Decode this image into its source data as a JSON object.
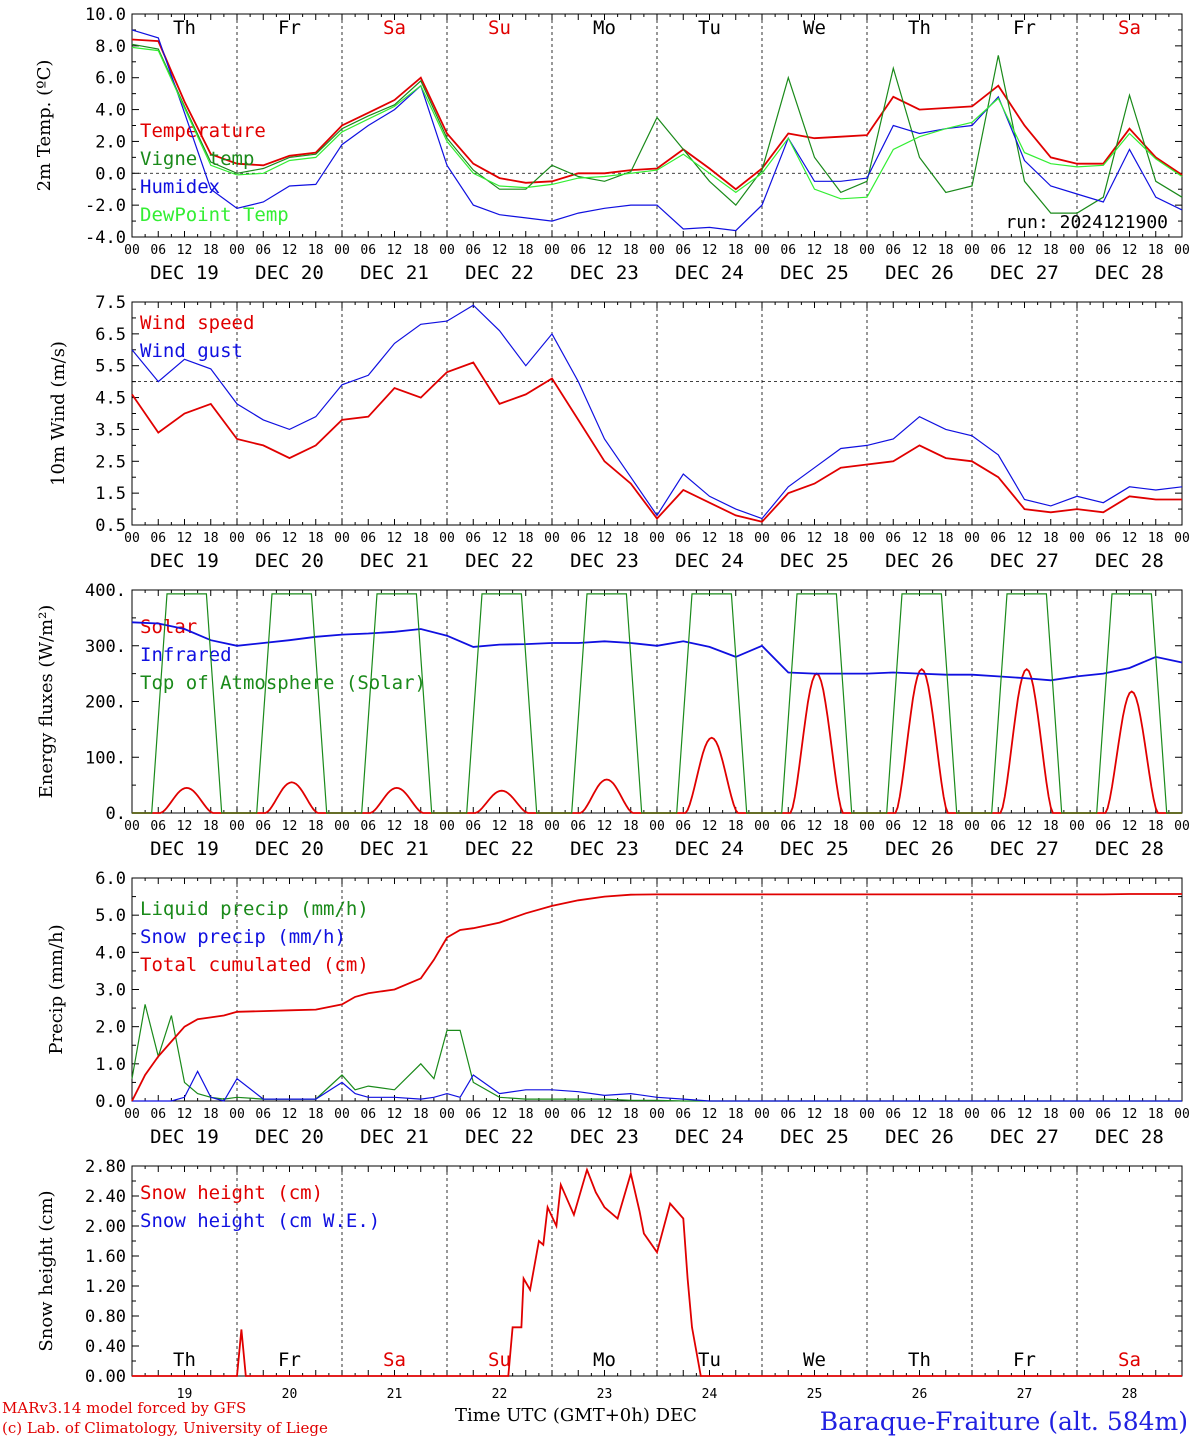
{
  "footer": {
    "credit1": "MARv3.14 model forced by GFS",
    "credit2": "(c) Lab. of Climatology, University of Liege",
    "time_axis": "Time UTC (GMT+0h) DEC",
    "location": "Baraque-Fraiture (alt. 584m)"
  },
  "run_label": "run: 2024121900",
  "colors": {
    "red": "#e00000",
    "green": "#1a8a1a",
    "blue": "#1010e0",
    "lightgreen": "#33ee33"
  },
  "days": [
    "Th",
    "Fr",
    "Sa",
    "Su",
    "Mo",
    "Tu",
    "We",
    "Th",
    "Fr",
    "Sa"
  ],
  "weekend": [
    false,
    false,
    true,
    true,
    false,
    false,
    false,
    false,
    false,
    true
  ],
  "dates": [
    "DEC 19",
    "DEC 20",
    "DEC 21",
    "DEC 22",
    "DEC 23",
    "DEC 24",
    "DEC 25",
    "DEC 26",
    "DEC 27",
    "DEC 28"
  ],
  "day_numbers": [
    "19",
    "20",
    "21",
    "22",
    "23",
    "24",
    "25",
    "26",
    "27",
    "28"
  ],
  "hour_ticks": [
    "00",
    "06",
    "12",
    "18"
  ],
  "chart_data": [
    {
      "type": "line",
      "ylabel": "2m Temp. (ºC)",
      "ylim": [
        -4,
        10
      ],
      "yticks": [
        "10.0",
        "8.0",
        "6.0",
        "4.0",
        "2.0",
        "0.0",
        "-2.0",
        "-4.0"
      ],
      "ytickvals": [
        10,
        8,
        6,
        4,
        2,
        0,
        -2,
        -4
      ],
      "refline": 0,
      "x_hours": [
        0,
        6,
        12,
        18,
        24,
        30,
        36,
        42,
        48,
        54,
        60,
        66,
        72,
        78,
        84,
        90,
        96,
        102,
        108,
        114,
        120,
        126,
        132,
        138,
        144,
        150,
        156,
        162,
        168,
        174,
        180,
        186,
        192,
        198,
        204,
        210,
        216,
        222,
        228,
        234,
        240
      ],
      "series": [
        {
          "name": "Temperature",
          "color": "red",
          "values": [
            8.4,
            8.3,
            4.5,
            1.2,
            0.6,
            0.5,
            1.1,
            1.3,
            3.0,
            3.8,
            4.6,
            6.0,
            2.5,
            0.6,
            -0.3,
            -0.6,
            -0.5,
            0.0,
            0.0,
            0.2,
            0.3,
            1.5,
            0.3,
            -1.0,
            0.3,
            2.5,
            2.2,
            2.3,
            2.4,
            4.8,
            4.0,
            4.1,
            4.2,
            5.5,
            3.0,
            1.0,
            0.6,
            0.6,
            2.8,
            1.0,
            -0.1
          ]
        },
        {
          "name": "Vigne temp",
          "color": "green",
          "values": [
            8.1,
            7.8,
            4.2,
            0.7,
            0.0,
            0.3,
            1.0,
            1.2,
            2.8,
            3.6,
            4.3,
            5.8,
            2.2,
            0.2,
            -1.0,
            -1.0,
            0.5,
            -0.2,
            -0.5,
            0.1,
            3.5,
            1.5,
            -0.5,
            -2.0,
            0.2,
            6.0,
            1.0,
            -1.2,
            -0.5,
            6.6,
            1.0,
            -1.2,
            -0.8,
            7.4,
            -0.5,
            -2.5,
            -2.5,
            -1.5,
            4.9,
            -0.5,
            -1.5
          ]
        },
        {
          "name": "Humidex",
          "color": "blue",
          "values": [
            9.0,
            8.5,
            3.8,
            -1.0,
            -2.2,
            -1.8,
            -0.8,
            -0.7,
            1.8,
            3.0,
            4.0,
            5.5,
            0.5,
            -2.0,
            -2.6,
            -2.8,
            -3.0,
            -2.5,
            -2.2,
            -2.0,
            -2.0,
            -3.5,
            -3.4,
            -3.6,
            -2.0,
            2.2,
            -0.5,
            -0.5,
            -0.3,
            3.0,
            2.5,
            2.8,
            3.0,
            4.8,
            0.8,
            -0.8,
            -1.3,
            -1.8,
            1.5,
            -1.5,
            -2.3
          ]
        },
        {
          "name": "DewPoint Temp",
          "color": "lightgreen",
          "values": [
            7.9,
            7.7,
            4.1,
            0.5,
            -0.1,
            0.0,
            0.8,
            1.0,
            2.6,
            3.4,
            4.2,
            5.5,
            2.0,
            0.0,
            -0.8,
            -0.9,
            -0.7,
            -0.3,
            -0.2,
            0.0,
            0.2,
            1.2,
            0.0,
            -1.2,
            0.0,
            2.2,
            -1.0,
            -1.6,
            -1.5,
            1.5,
            2.3,
            2.8,
            3.2,
            4.7,
            1.3,
            0.6,
            0.4,
            0.5,
            2.5,
            0.9,
            -0.2
          ]
        }
      ]
    },
    {
      "type": "line",
      "ylabel": "10m Wind (m/s)",
      "ylim": [
        0.5,
        7.5
      ],
      "yticks": [
        "7.5",
        "6.5",
        "5.5",
        "4.5",
        "3.5",
        "2.5",
        "1.5",
        "0.5"
      ],
      "ytickvals": [
        7.5,
        6.5,
        5.5,
        4.5,
        3.5,
        2.5,
        1.5,
        0.5
      ],
      "refline": 5.0,
      "x_hours": [
        0,
        6,
        12,
        18,
        24,
        30,
        36,
        42,
        48,
        54,
        60,
        66,
        72,
        78,
        84,
        90,
        96,
        102,
        108,
        114,
        120,
        126,
        132,
        138,
        144,
        150,
        156,
        162,
        168,
        174,
        180,
        186,
        192,
        198,
        204,
        210,
        216,
        222,
        228,
        234,
        240
      ],
      "series": [
        {
          "name": "Wind speed",
          "color": "red",
          "values": [
            4.6,
            3.4,
            4.0,
            4.3,
            3.2,
            3.0,
            2.6,
            3.0,
            3.8,
            3.9,
            4.8,
            4.5,
            5.3,
            5.6,
            4.3,
            4.6,
            5.1,
            3.8,
            2.5,
            1.8,
            0.7,
            1.6,
            1.2,
            0.8,
            0.6,
            1.5,
            1.8,
            2.3,
            2.4,
            2.5,
            3.0,
            2.6,
            2.5,
            2.0,
            1.0,
            0.9,
            1.0,
            0.9,
            1.4,
            1.3,
            1.3
          ]
        },
        {
          "name": "Wind gust",
          "color": "blue",
          "values": [
            6.0,
            5.0,
            5.7,
            5.4,
            4.3,
            3.8,
            3.5,
            3.9,
            4.9,
            5.2,
            6.2,
            6.8,
            6.9,
            7.4,
            6.6,
            5.5,
            6.5,
            5.0,
            3.2,
            2.0,
            0.8,
            2.1,
            1.4,
            1.0,
            0.7,
            1.7,
            2.3,
            2.9,
            3.0,
            3.2,
            3.9,
            3.5,
            3.3,
            2.7,
            1.3,
            1.1,
            1.4,
            1.2,
            1.7,
            1.6,
            1.7
          ]
        }
      ]
    },
    {
      "type": "line",
      "ylabel": "Energy fluxes (W/m²)",
      "ylim": [
        0,
        400
      ],
      "yticks": [
        "400.",
        "300.",
        "200.",
        "100.",
        "0."
      ],
      "ytickvals": [
        400,
        300,
        200,
        100,
        0
      ],
      "series": [
        {
          "name": "Solar",
          "color": "red",
          "peaks": [
            45,
            55,
            45,
            40,
            60,
            135,
            250,
            258,
            258,
            218
          ]
        },
        {
          "name": "Infrared",
          "color": "blue",
          "x_hours": [
            0,
            6,
            12,
            18,
            24,
            30,
            36,
            42,
            48,
            54,
            60,
            66,
            72,
            78,
            84,
            90,
            96,
            102,
            108,
            114,
            120,
            126,
            132,
            138,
            144,
            150,
            156,
            162,
            168,
            174,
            180,
            186,
            192,
            198,
            204,
            210,
            216,
            222,
            228,
            234,
            240
          ],
          "values": [
            342,
            340,
            330,
            310,
            300,
            305,
            310,
            316,
            320,
            322,
            325,
            330,
            318,
            298,
            302,
            303,
            305,
            305,
            308,
            305,
            300,
            308,
            298,
            280,
            300,
            252,
            250,
            250,
            250,
            252,
            250,
            248,
            248,
            245,
            242,
            238,
            245,
            250,
            260,
            280,
            270
          ]
        },
        {
          "name": "Top of Atmosphere (Solar)",
          "color": "green",
          "peak": 393
        }
      ]
    },
    {
      "type": "line",
      "ylabel": "Precip (mm/h)",
      "ylim": [
        0,
        6
      ],
      "yticks": [
        "6.0",
        "5.0",
        "4.0",
        "3.0",
        "2.0",
        "1.0",
        "0.0"
      ],
      "ytickvals": [
        6,
        5,
        4,
        3,
        2,
        1,
        0
      ],
      "x_hours": [
        0,
        3,
        6,
        9,
        12,
        15,
        18,
        21,
        24,
        30,
        36,
        42,
        48,
        51,
        54,
        60,
        66,
        69,
        72,
        75,
        78,
        84,
        90,
        96,
        102,
        108,
        114,
        120,
        126,
        132,
        138,
        144,
        150,
        156,
        162,
        168,
        174,
        180,
        186,
        192,
        198,
        204,
        210,
        216,
        222,
        228,
        234,
        240
      ],
      "series": [
        {
          "name": "Liquid precip (mm/h)",
          "color": "green",
          "values": [
            0.6,
            2.6,
            1.2,
            2.3,
            0.5,
            0.2,
            0.1,
            0.05,
            0.1,
            0.05,
            0.05,
            0.05,
            0.7,
            0.3,
            0.4,
            0.3,
            1.0,
            0.6,
            1.9,
            1.9,
            0.5,
            0.1,
            0.05,
            0.05,
            0.05,
            0.05,
            0.02,
            0.02,
            0,
            0,
            0,
            0,
            0,
            0,
            0,
            0,
            0,
            0,
            0,
            0,
            0,
            0,
            0,
            0,
            0,
            0,
            0,
            0
          ]
        },
        {
          "name": "Snow precip (mm/h)",
          "color": "blue",
          "values": [
            0,
            0,
            0,
            0,
            0.1,
            0.8,
            0.1,
            0,
            0.6,
            0.05,
            0.05,
            0.05,
            0.5,
            0.2,
            0.1,
            0.1,
            0.05,
            0.1,
            0.2,
            0.1,
            0.7,
            0.2,
            0.3,
            0.3,
            0.25,
            0.15,
            0.2,
            0.1,
            0.05,
            0,
            0,
            0,
            0,
            0,
            0,
            0,
            0,
            0,
            0,
            0,
            0,
            0,
            0,
            0,
            0,
            0,
            0,
            0
          ]
        },
        {
          "name": "Total cumulated (cm)",
          "color": "red",
          "values": [
            0,
            0.7,
            1.2,
            1.6,
            2.0,
            2.2,
            2.25,
            2.3,
            2.4,
            2.42,
            2.44,
            2.46,
            2.6,
            2.8,
            2.9,
            3.0,
            3.3,
            3.8,
            4.4,
            4.6,
            4.65,
            4.8,
            5.05,
            5.25,
            5.4,
            5.5,
            5.55,
            5.56,
            5.56,
            5.56,
            5.56,
            5.56,
            5.56,
            5.56,
            5.56,
            5.56,
            5.56,
            5.56,
            5.56,
            5.56,
            5.56,
            5.56,
            5.56,
            5.56,
            5.56,
            5.57,
            5.57,
            5.57
          ]
        }
      ]
    },
    {
      "type": "line",
      "ylabel": "Snow height (cm)",
      "ylim": [
        0,
        2.8
      ],
      "yticks": [
        "2.80",
        "2.40",
        "2.00",
        "1.60",
        "1.20",
        "0.80",
        "0.40",
        "0.00"
      ],
      "ytickvals": [
        2.8,
        2.4,
        2.0,
        1.6,
        1.2,
        0.8,
        0.4,
        0.0
      ],
      "x_hours": [
        0,
        24,
        25,
        26,
        27,
        86,
        87,
        89,
        89.5,
        91,
        93,
        94,
        95,
        97,
        98,
        101,
        104,
        106,
        108,
        111,
        114,
        116,
        117,
        120,
        123,
        126,
        127,
        128,
        130,
        132,
        133,
        240
      ],
      "series": [
        {
          "name": "Snow height (cm)",
          "color": "red",
          "values": [
            0,
            0,
            0.62,
            0,
            0,
            0,
            0.65,
            0.65,
            1.3,
            1.15,
            1.8,
            1.75,
            2.25,
            2.0,
            2.55,
            2.15,
            2.75,
            2.45,
            2.25,
            2.1,
            2.7,
            2.2,
            1.9,
            1.65,
            2.3,
            2.1,
            1.3,
            0.65,
            0,
            0,
            0,
            0
          ]
        },
        {
          "name": "Snow height (cm W.E.)",
          "color": "blue",
          "values": []
        }
      ]
    }
  ]
}
